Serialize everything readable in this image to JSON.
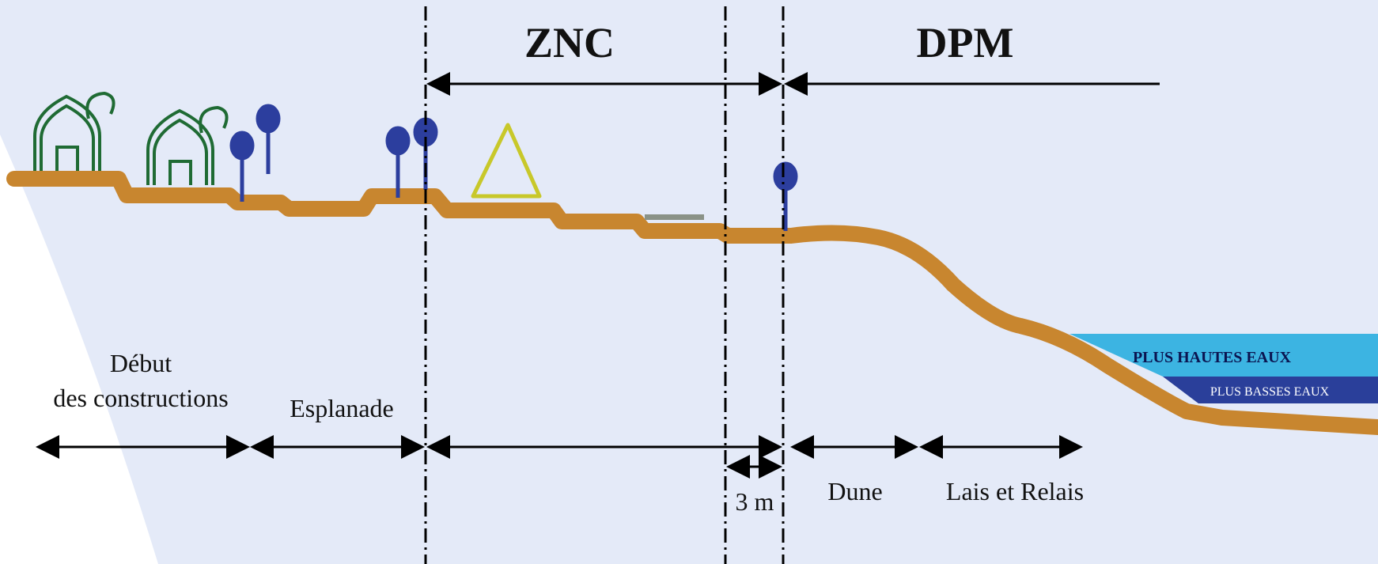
{
  "zones": {
    "znc": "ZNC",
    "dpm": "DPM"
  },
  "labels": {
    "debut_line1": "Début",
    "debut_line2": "des constructions",
    "esplanade": "Esplanade",
    "three_m": "3 m",
    "dune": "Dune",
    "lais": "Lais et Relais"
  },
  "water": {
    "high": "PLUS HAUTES EAUX",
    "low": "PLUS BASSES EAUX"
  },
  "colors": {
    "background": "#e4eaf8",
    "ground": "#c8862f",
    "house": "#1f6b34",
    "tree": "#2c3e9e",
    "tent": "#c8c82a",
    "high_water": "#3cb4e2",
    "low_water": "#2a3f9a"
  },
  "icons": [
    "house-icon",
    "tree-icon",
    "tent-icon",
    "arrow-icon"
  ]
}
